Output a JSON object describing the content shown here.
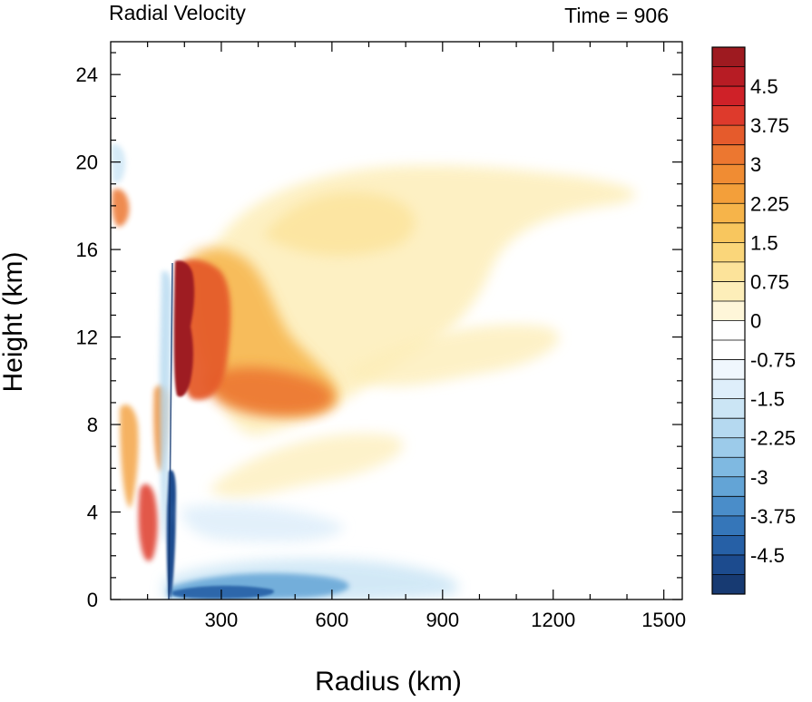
{
  "chart_data": {
    "type": "heatmap",
    "title": "Radial Velocity",
    "subtitle": "Time = 906",
    "xlabel": "Radius (km)",
    "ylabel": "Height (km)",
    "xlim": [
      0,
      1550
    ],
    "ylim": [
      0,
      25.5
    ],
    "x_major_ticks": [
      300,
      600,
      900,
      1200,
      1500
    ],
    "x_major_tick_labels": [
      "300",
      "600",
      "900",
      "1200",
      "1500"
    ],
    "y_major_ticks": [
      0,
      4,
      8,
      12,
      16,
      20,
      24
    ],
    "y_major_tick_labels": [
      "0",
      "4",
      "8",
      "12",
      "16",
      "20",
      "24"
    ],
    "colorbar": {
      "min": -5.25,
      "max": 5.25,
      "step": 0.375,
      "labels": [
        "4.5",
        "3.75",
        "3",
        "2.25",
        "1.5",
        "0.75",
        "0",
        "-0.75",
        "-1.5",
        "-2.25",
        "-3",
        "-3.75",
        "-4.5"
      ],
      "label_values": [
        4.5,
        3.75,
        3,
        2.25,
        1.5,
        0.75,
        0,
        -0.75,
        -1.5,
        -2.25,
        -3,
        -3.75,
        -4.5
      ],
      "colors_high_to_low": [
        "#9e1a20",
        "#b71c24",
        "#cf2128",
        "#de3a2c",
        "#e55b2c",
        "#ec7730",
        "#f08c33",
        "#f39f3a",
        "#f6b44a",
        "#f8c65e",
        "#fad67a",
        "#fce39a",
        "#fdeeb9",
        "#fef6d9",
        "#ffffff",
        "#ffffff",
        "#f0f7fd",
        "#deeefa",
        "#cbe5f5",
        "#b5d9f0",
        "#9ccbea",
        "#7fb9e1",
        "#63a4d6",
        "#4a8dc9",
        "#3576b9",
        "#2660a6",
        "#1c4b8e",
        "#173a72"
      ]
    },
    "features": [
      {
        "name": "outflow-core-upper",
        "r": 205,
        "z": 14.3,
        "value": 5.2
      },
      {
        "name": "outflow-core-mid",
        "r": 210,
        "z": 11.4,
        "value": 4.9
      },
      {
        "name": "outflow-core-lower",
        "r": 205,
        "z": 9.6,
        "value": 5.1
      },
      {
        "name": "outflow-lobe",
        "r": 330,
        "z": 9.3,
        "value": 3.0
      },
      {
        "name": "outflow-upper-shield",
        "r": 480,
        "z": 15.5,
        "value": 1.0
      },
      {
        "name": "outflow-plume",
        "r": 600,
        "z": 17.2,
        "value": 0.8
      },
      {
        "name": "upper-isolated-max",
        "r": 30,
        "z": 17.6,
        "value": 2.3
      },
      {
        "name": "low-level-inflow",
        "r": 350,
        "z": 0.5,
        "value": -2.8
      },
      {
        "name": "eyewall-inflow-spike",
        "r": 180,
        "z": 3.0,
        "value": -5.0
      },
      {
        "name": "inner-inflow-column",
        "r": 185,
        "z": 8.0,
        "value": -1.2
      }
    ]
  }
}
